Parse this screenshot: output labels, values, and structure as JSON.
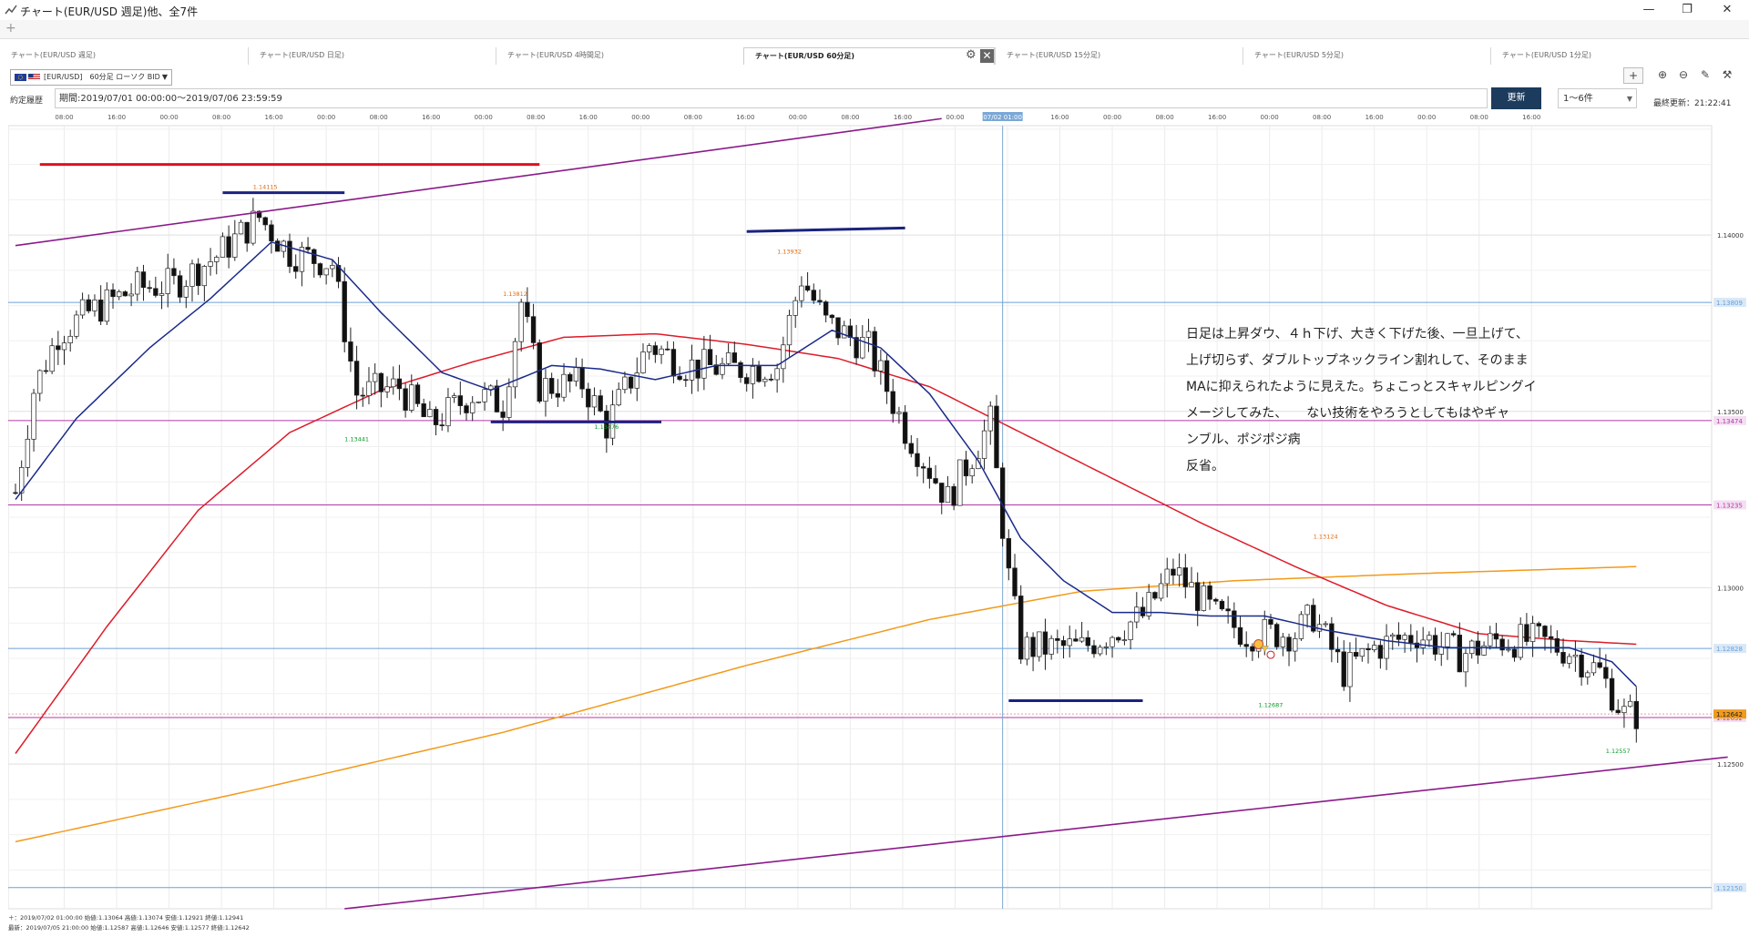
{
  "window": {
    "title": "チャート(EUR/USD 週足)他、全7件"
  },
  "tabs": [
    {
      "label": "チャート(EUR/USD 週足)"
    },
    {
      "label": "チャート(EUR/USD 日足)"
    },
    {
      "label": "チャート(EUR/USD 4時間足)"
    },
    {
      "label": "チャート(EUR/USD 60分足)"
    },
    {
      "label": "チャート(EUR/USD 15分足)"
    },
    {
      "label": "チャート(EUR/USD 5分足)"
    },
    {
      "label": "チャート(EUR/USD 1分足)"
    }
  ],
  "active_tab_extra": {
    "design_label": "デザイン"
  },
  "toolbar": {
    "symbol_label": "[EUR/USD]　60分足 ローソク BID"
  },
  "period": {
    "label": "約定履歴",
    "value": "期間:2019/07/01 00:00:00〜2019/07/06 23:59:59",
    "update_button": "更新",
    "range_value": "1〜6件",
    "last_update": "最終更新：21:22:41"
  },
  "annotation": "日足は上昇ダウ、４ｈ下げ、大きく下げた後、一旦上げて、\n上げ切らず、ダブルトップネックライン割れして、そのまま\nMAに抑えられたように見えた。ちょこっとスキャルピングイ\nメージしてみた、　　ない技術をやろうとしてもはやギャ\nンブル、ポジポジ病\n反省。",
  "footer": {
    "line1": "＋：2019/07/02 01:00:00 始値:1.13064 高値:1.13074 安値:1.12921 終値:1.12941",
    "line2": "最新：2019/07/05 21:00:00 始値:1.12587 高値:1.12646 安値:1.12577 終値:1.12642"
  },
  "colors": {
    "up": "#ffffff",
    "down": "#111111",
    "ma_short": "#1a2a8a",
    "ma_mid": "#dd1c2a",
    "ma_long": "#f29a1a",
    "trendline": "#8a1a8a",
    "navy_line": "#1a237e",
    "red_line": "#dd1122",
    "hline_blue": "#6aa0d8",
    "hline_magenta": "#b03aa8",
    "current_price": "#f29a1a"
  },
  "chart_data": {
    "type": "candlestick",
    "timeframe": "60分足",
    "symbol": "EUR/USD",
    "ylim": [
      1.1209,
      1.1431
    ],
    "yticks": [
      1.14,
      1.135,
      1.13,
      1.125
    ],
    "xticks": [
      "08:00",
      "16:00",
      "00:00",
      "08:00",
      "16:00",
      "00:00",
      "08:00",
      "16:00",
      "00:00",
      "08:00",
      "16:00",
      "00:00",
      "08:00",
      "16:00",
      "00:00",
      "08:00",
      "16:00",
      "00:00",
      "08:00",
      "16:00",
      "00:00",
      "08:00",
      "16:00",
      "00:00",
      "08:00",
      "16:00",
      "00:00",
      "08:00",
      "16:00"
    ],
    "crosshair_label": "07/02 01:00",
    "crosshair_index": 162,
    "price_labels": [
      {
        "text": "1.13809",
        "value": 1.13809,
        "style": "blue"
      },
      {
        "text": "1.13474",
        "value": 1.13474,
        "style": "magenta"
      },
      {
        "text": "1.13235",
        "value": 1.13235,
        "style": "magenta"
      },
      {
        "text": "1.12828",
        "value": 1.12828,
        "style": "blue"
      },
      {
        "text": "1.12632",
        "value": 1.12632,
        "style": "magenta"
      },
      {
        "text": "1.12642",
        "value": 1.12642,
        "style": "current"
      },
      {
        "text": "1.12150",
        "value": 1.1215,
        "style": "blue"
      }
    ],
    "extreme_labels": [
      {
        "text": "1.14115",
        "index": 41,
        "value": 1.14115,
        "kind": "high"
      },
      {
        "text": "1.13441",
        "index": 56,
        "value": 1.13441,
        "kind": "low"
      },
      {
        "text": "1.13812",
        "index": 82,
        "value": 1.13812,
        "kind": "high"
      },
      {
        "text": "1.13476",
        "index": 97,
        "value": 1.13476,
        "kind": "low"
      },
      {
        "text": "1.13932",
        "index": 127,
        "value": 1.13932,
        "kind": "high"
      },
      {
        "text": "1.13124",
        "index": 215,
        "value": 1.13124,
        "kind": "high"
      },
      {
        "text": "1.12687",
        "index": 206,
        "value": 1.12687,
        "kind": "low"
      },
      {
        "text": "1.12557",
        "index": 263,
        "value": 1.12557,
        "kind": "low"
      }
    ],
    "close_anchors": [
      [
        0,
        1.1327
      ],
      [
        3,
        1.1356
      ],
      [
        7,
        1.1372
      ],
      [
        12,
        1.1378
      ],
      [
        20,
        1.1385
      ],
      [
        26,
        1.1386
      ],
      [
        33,
        1.1394
      ],
      [
        40,
        1.1405
      ],
      [
        45,
        1.1395
      ],
      [
        52,
        1.1392
      ],
      [
        56,
        1.1355
      ],
      [
        63,
        1.1357
      ],
      [
        68,
        1.1346
      ],
      [
        75,
        1.1355
      ],
      [
        80,
        1.1352
      ],
      [
        83,
        1.1381
      ],
      [
        86,
        1.1357
      ],
      [
        93,
        1.1358
      ],
      [
        97,
        1.1346
      ],
      [
        104,
        1.1369
      ],
      [
        110,
        1.1363
      ],
      [
        118,
        1.1362
      ],
      [
        125,
        1.1363
      ],
      [
        129,
        1.1388
      ],
      [
        133,
        1.1375
      ],
      [
        140,
        1.1368
      ],
      [
        146,
        1.1345
      ],
      [
        153,
        1.1325
      ],
      [
        160,
        1.1347
      ],
      [
        163,
        1.1303
      ],
      [
        165,
        1.1283
      ],
      [
        175,
        1.1283
      ],
      [
        185,
        1.1292
      ],
      [
        190,
        1.1305
      ],
      [
        197,
        1.1292
      ],
      [
        202,
        1.1287
      ],
      [
        210,
        1.1287
      ],
      [
        213,
        1.1292
      ],
      [
        218,
        1.1276
      ],
      [
        223,
        1.1283
      ],
      [
        230,
        1.1287
      ],
      [
        237,
        1.1281
      ],
      [
        243,
        1.1285
      ],
      [
        250,
        1.1285
      ],
      [
        255,
        1.1282
      ],
      [
        260,
        1.1276
      ],
      [
        264,
        1.1264
      ],
      [
        266,
        1.1264
      ]
    ],
    "n_candles": 267,
    "series": [
      {
        "name": "MA short",
        "type": "ma_short",
        "values_desc": "approx. 12-period moving average"
      },
      {
        "name": "MA mid",
        "type": "ma_mid"
      },
      {
        "name": "MA long",
        "type": "ma_long"
      }
    ],
    "ma_short_anchors": [
      [
        0,
        1.1325
      ],
      [
        10,
        1.1348
      ],
      [
        22,
        1.1368
      ],
      [
        32,
        1.1382
      ],
      [
        42,
        1.1398
      ],
      [
        52,
        1.1393
      ],
      [
        60,
        1.1378
      ],
      [
        70,
        1.1361
      ],
      [
        78,
        1.1356
      ],
      [
        88,
        1.1363
      ],
      [
        96,
        1.1362
      ],
      [
        105,
        1.1359
      ],
      [
        115,
        1.1363
      ],
      [
        125,
        1.1363
      ],
      [
        134,
        1.1373
      ],
      [
        142,
        1.1368
      ],
      [
        150,
        1.1355
      ],
      [
        158,
        1.1336
      ],
      [
        165,
        1.1314
      ],
      [
        172,
        1.1302
      ],
      [
        180,
        1.1293
      ],
      [
        188,
        1.1293
      ],
      [
        196,
        1.1292
      ],
      [
        205,
        1.1292
      ],
      [
        215,
        1.1288
      ],
      [
        225,
        1.1285
      ],
      [
        235,
        1.1283
      ],
      [
        245,
        1.1283
      ],
      [
        255,
        1.1283
      ],
      [
        262,
        1.1279
      ],
      [
        266,
        1.1272
      ]
    ],
    "ma_mid_anchors": [
      [
        0,
        1.1253
      ],
      [
        15,
        1.1289
      ],
      [
        30,
        1.1322
      ],
      [
        45,
        1.1344
      ],
      [
        60,
        1.1356
      ],
      [
        75,
        1.1364
      ],
      [
        90,
        1.1371
      ],
      [
        105,
        1.1372
      ],
      [
        120,
        1.1369
      ],
      [
        135,
        1.1365
      ],
      [
        150,
        1.1357
      ],
      [
        165,
        1.1344
      ],
      [
        180,
        1.1331
      ],
      [
        195,
        1.1318
      ],
      [
        210,
        1.1306
      ],
      [
        225,
        1.1295
      ],
      [
        240,
        1.1287
      ],
      [
        255,
        1.1285
      ],
      [
        266,
        1.1284
      ]
    ],
    "ma_long_anchors": [
      [
        0,
        1.1228
      ],
      [
        40,
        1.1243
      ],
      [
        80,
        1.1259
      ],
      [
        120,
        1.1278
      ],
      [
        150,
        1.1291
      ],
      [
        175,
        1.1299
      ],
      [
        200,
        1.1302
      ],
      [
        230,
        1.1304
      ],
      [
        266,
        1.1306
      ]
    ],
    "trendlines": [
      {
        "name": "upper-channel",
        "from": [
          0,
          1.1397
        ],
        "to": [
          152,
          1.1433
        ],
        "color": "trendline"
      },
      {
        "name": "lower-channel",
        "from": [
          54,
          1.1209
        ],
        "to": [
          281,
          1.1252
        ],
        "color": "trendline"
      },
      {
        "name": "double-top-red",
        "from": [
          4,
          1.142
        ],
        "to": [
          86,
          1.142
        ],
        "color": "red_line"
      },
      {
        "name": "top1-navy",
        "from": [
          34,
          1.1412
        ],
        "to": [
          54,
          1.1412
        ],
        "color": "navy_line"
      },
      {
        "name": "top2-navy",
        "from": [
          120,
          1.1401
        ],
        "to": [
          146,
          1.1402
        ],
        "color": "navy_line"
      },
      {
        "name": "neckline-navy",
        "from": [
          78,
          1.1347
        ],
        "to": [
          106,
          1.1347
        ],
        "color": "navy_line"
      },
      {
        "name": "support-navy",
        "from": [
          163,
          1.1268
        ],
        "to": [
          185,
          1.1268
        ],
        "color": "navy_line"
      }
    ],
    "grid": true
  }
}
